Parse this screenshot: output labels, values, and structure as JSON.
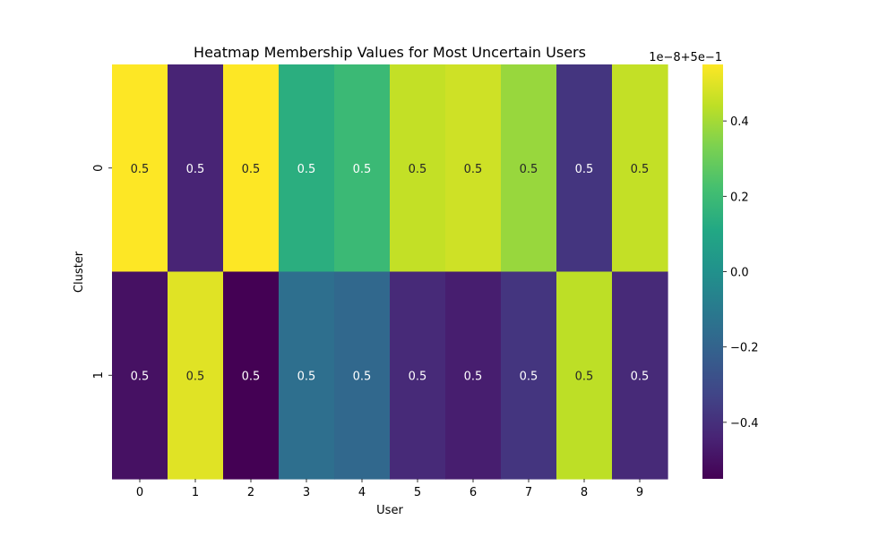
{
  "chart_data": {
    "type": "heatmap",
    "title": "Heatmap Membership Values for Most Uncertain Users",
    "xlabel": "User",
    "ylabel": "Cluster",
    "x_categories": [
      "0",
      "1",
      "2",
      "3",
      "4",
      "5",
      "6",
      "7",
      "8",
      "9"
    ],
    "y_categories": [
      "0",
      "1"
    ],
    "values_offset_e8": [
      [
        0.55,
        -0.44,
        0.55,
        0.14,
        0.19,
        0.45,
        0.47,
        0.38,
        -0.38,
        0.45
      ],
      [
        -0.5,
        0.5,
        -0.55,
        -0.15,
        -0.18,
        -0.42,
        -0.46,
        -0.38,
        0.44,
        -0.42
      ]
    ],
    "cell_labels": [
      [
        "0.5",
        "0.5",
        "0.5",
        "0.5",
        "0.5",
        "0.5",
        "0.5",
        "0.5",
        "0.5",
        "0.5"
      ],
      [
        "0.5",
        "0.5",
        "0.5",
        "0.5",
        "0.5",
        "0.5",
        "0.5",
        "0.5",
        "0.5",
        "0.5"
      ]
    ],
    "colorbar": {
      "colormap": "viridis",
      "range": [
        -0.55,
        0.55
      ],
      "ticks": [
        0.4,
        0.2,
        0.0,
        -0.2,
        -0.4
      ],
      "tick_labels": [
        "0.4",
        "0.2",
        "0.0",
        "−0.2",
        "−0.4"
      ],
      "offset_text": "1e−8+5e−1"
    },
    "grid": false
  }
}
